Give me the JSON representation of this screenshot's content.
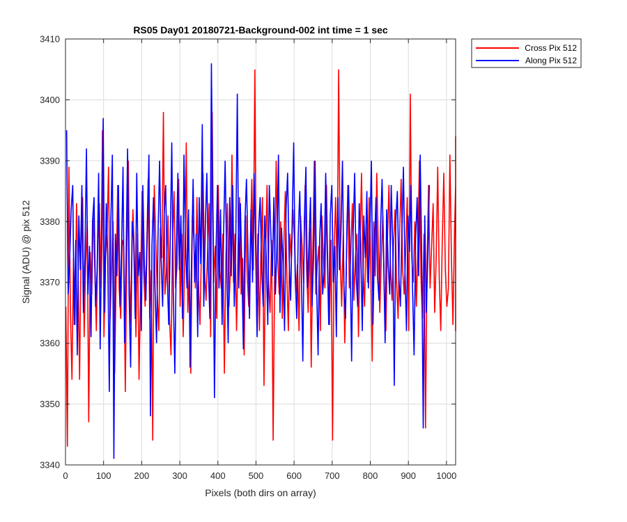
{
  "chart_data": {
    "type": "line",
    "title": "RS05 Day01 20180721-Background-002 int time = 1 sec",
    "xlabel": "Pixels (both dirs on array)",
    "ylabel": "Signal (ADU) @ pix 512",
    "xlim": [
      0,
      1024
    ],
    "ylim": [
      3340,
      3410
    ],
    "xticks": [
      0,
      100,
      200,
      300,
      400,
      500,
      600,
      700,
      800,
      900,
      1000
    ],
    "yticks": [
      3340,
      3350,
      3360,
      3370,
      3380,
      3390,
      3400,
      3410
    ],
    "grid": true,
    "legend_position": "outside-top-right",
    "series": [
      {
        "name": "Cross Pix 512",
        "color": "#ff0000",
        "x_start": 1,
        "x_step": 4,
        "values": [
          3366,
          3343,
          3389,
          3365,
          3354,
          3374,
          3363,
          3383,
          3372,
          3354,
          3376,
          3384,
          3361,
          3373,
          3380,
          3347,
          3375,
          3368,
          3382,
          3372,
          3362,
          3377,
          3383,
          3369,
          3395,
          3361,
          3374,
          3378,
          3389,
          3364,
          3372,
          3380,
          3355,
          3371,
          3386,
          3369,
          3364,
          3377,
          3376,
          3352,
          3375,
          3390,
          3363,
          3371,
          3382,
          3374,
          3361,
          3378,
          3354,
          3369,
          3385,
          3372,
          3366,
          3375,
          3387,
          3364,
          3372,
          3344,
          3386,
          3377,
          3368,
          3362,
          3379,
          3374,
          3398,
          3368,
          3372,
          3381,
          3364,
          3358,
          3376,
          3385,
          3369,
          3373,
          3387,
          3366,
          3378,
          3361,
          3374,
          3393,
          3365,
          3372,
          3355,
          3381,
          3377,
          3369,
          3384,
          3370,
          3363,
          3376,
          3388,
          3372,
          3367,
          3375,
          3383,
          3361,
          3398,
          3370,
          3376,
          3364,
          3386,
          3372,
          3369,
          3378,
          3355,
          3374,
          3383,
          3366,
          3372,
          3391,
          3370,
          3378,
          3362,
          3376,
          3384,
          3368,
          3374,
          3358,
          3381,
          3371,
          3366,
          3376,
          3387,
          3372,
          3405,
          3368,
          3378,
          3362,
          3375,
          3384,
          3353,
          3374,
          3386,
          3370,
          3365,
          3377,
          3344,
          3371,
          3390,
          3374,
          3368,
          3380,
          3364,
          3376,
          3385,
          3371,
          3362,
          3378,
          3374,
          3382,
          3377,
          3368,
          3373,
          3362,
          3381,
          3376,
          3370,
          3386,
          3372,
          3365,
          3379,
          3356,
          3374,
          3390,
          3368,
          3373,
          3376,
          3362,
          3381,
          3374,
          3369,
          3386,
          3370,
          3363,
          3377,
          3344,
          3375,
          3384,
          3371,
          3405,
          3374,
          3366,
          3378,
          3360,
          3372,
          3386,
          3369,
          3375,
          3383,
          3367,
          3374,
          3378,
          3361,
          3376,
          3388,
          3372,
          3366,
          3379,
          3370,
          3384,
          3374,
          3357,
          3380,
          3371,
          3388,
          3376,
          3365,
          3374,
          3381,
          3369,
          3362,
          3377,
          3386,
          3373,
          3367,
          3376,
          3382,
          3370,
          3364,
          3378,
          3387,
          3372,
          3368,
          3375,
          3384,
          3362,
          3401,
          3374,
          3370,
          3380,
          3366,
          3376,
          3390,
          3371,
          3364,
          3378,
          3346,
          3373,
          3386,
          3369,
          3376,
          3383,
          3365,
          3374,
          3389,
          3371,
          3362,
          3377,
          3388,
          3372,
          3366,
          3369,
          3391,
          3374,
          3363,
          3378,
          3386,
          3370,
          3376,
          3368,
          3382,
          3362,
          3375,
          3394,
          3371,
          3367
        ]
      },
      {
        "name": "Along Pix 512",
        "color": "#0000ff",
        "x_start": 3,
        "x_step": 4,
        "values": [
          3395,
          3368,
          3374,
          3382,
          3386,
          3363,
          3377,
          3358,
          3381,
          3372,
          3386,
          3365,
          3374,
          3392,
          3368,
          3376,
          3361,
          3380,
          3384,
          3366,
          3372,
          3388,
          3359,
          3377,
          3397,
          3365,
          3383,
          3374,
          3352,
          3380,
          3391,
          3341,
          3378,
          3371,
          3386,
          3366,
          3375,
          3389,
          3360,
          3374,
          3392,
          3368,
          3356,
          3380,
          3377,
          3364,
          3388,
          3371,
          3375,
          3362,
          3386,
          3373,
          3367,
          3379,
          3391,
          3348,
          3376,
          3384,
          3369,
          3360,
          3378,
          3390,
          3374,
          3366,
          3381,
          3386,
          3371,
          3363,
          3377,
          3393,
          3368,
          3355,
          3375,
          3388,
          3372,
          3381,
          3364,
          3391,
          3376,
          3369,
          3382,
          3356,
          3374,
          3387,
          3370,
          3378,
          3361,
          3384,
          3373,
          3396,
          3366,
          3379,
          3388,
          3372,
          3364,
          3406,
          3380,
          3351,
          3375,
          3386,
          3369,
          3382,
          3363,
          3378,
          3390,
          3374,
          3360,
          3384,
          3371,
          3386,
          3366,
          3377,
          3401,
          3369,
          3383,
          3372,
          3359,
          3380,
          3387,
          3375,
          3364,
          3382,
          3370,
          3388,
          3376,
          3361,
          3379,
          3384,
          3372,
          3366,
          3381,
          3374,
          3363,
          3386,
          3378,
          3371,
          3384,
          3368,
          3376,
          3391,
          3365,
          3379,
          3373,
          3362,
          3382,
          3388,
          3374,
          3367,
          3380,
          3393,
          3371,
          3364,
          3378,
          3385,
          3372,
          3357,
          3380,
          3389,
          3369,
          3376,
          3384,
          3366,
          3374,
          3390,
          3370,
          3358,
          3377,
          3383,
          3368,
          3372,
          3388,
          3375,
          3363,
          3381,
          3386,
          3370,
          3376,
          3361,
          3384,
          3372,
          3378,
          3390,
          3369,
          3364,
          3380,
          3386,
          3374,
          3357,
          3378,
          3388,
          3371,
          3366,
          3383,
          3376,
          3362,
          3381,
          3374,
          3385,
          3369,
          3378,
          3390,
          3363,
          3376,
          3384,
          3371,
          3367,
          3379,
          3387,
          3374,
          3360,
          3382,
          3373,
          3368,
          3386,
          3376,
          3353,
          3380,
          3385,
          3371,
          3366,
          3378,
          3389,
          3372,
          3362,
          3381,
          3375,
          3386,
          3369,
          3358,
          3377,
          3384,
          3371,
          3391,
          3374,
          3346,
          3381,
          3365,
          3374,
          3386
        ]
      }
    ]
  }
}
